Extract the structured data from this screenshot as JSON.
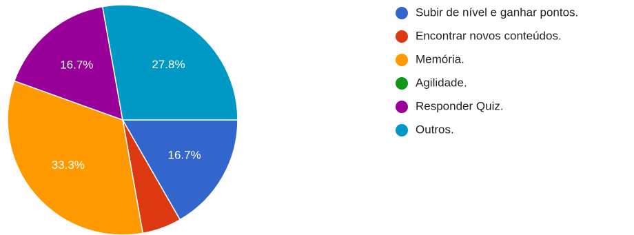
{
  "chart_data": {
    "type": "pie",
    "categories": [
      "Subir de nível e ganhar pontos.",
      "Encontrar novos conteúdos.",
      "Memória.",
      "Agilidade.",
      "Responder Quiz.",
      "Outros."
    ],
    "values": [
      16.7,
      5.5,
      33.3,
      0,
      16.7,
      27.8
    ],
    "data_labels": [
      "16.7%",
      "",
      "33.3%",
      "",
      "16.7%",
      "27.8%"
    ],
    "colors": [
      "#3366cc",
      "#dc3912",
      "#ff9900",
      "#109618",
      "#990099",
      "#0099c6"
    ],
    "legend_position": "right"
  }
}
